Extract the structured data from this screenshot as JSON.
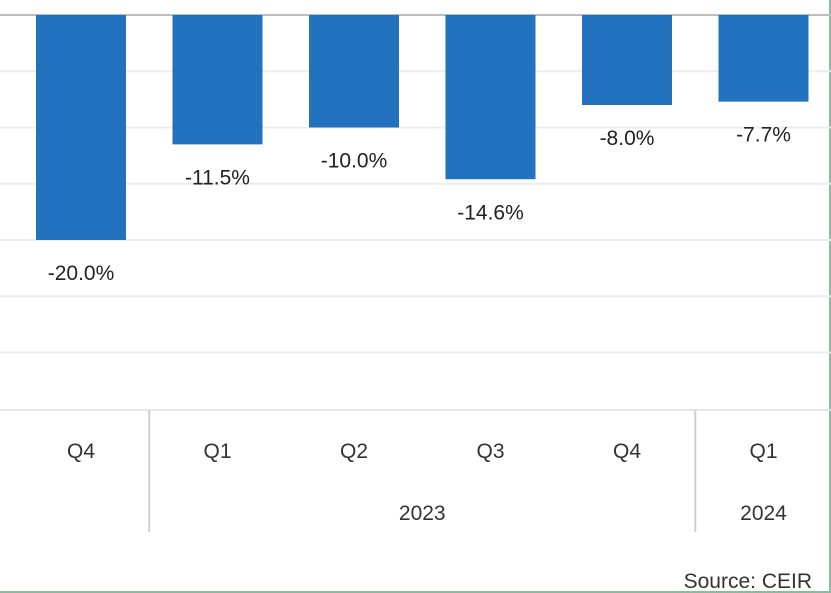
{
  "chart_data": {
    "type": "bar",
    "title": "",
    "xlabel": "",
    "ylabel": "",
    "categories": [
      "Q4",
      "Q1",
      "Q2",
      "Q3",
      "Q4",
      "Q1"
    ],
    "groups": [
      {
        "label": "",
        "categories": [
          "Q4"
        ]
      },
      {
        "label": "2023",
        "categories": [
          "Q1",
          "Q2",
          "Q3",
          "Q4"
        ]
      },
      {
        "label": "2024",
        "categories": [
          "Q1"
        ]
      }
    ],
    "values": [
      -20.0,
      -11.5,
      -10.0,
      -14.6,
      -8.0,
      -7.7
    ],
    "value_labels": [
      "-20.0%",
      "-11.5%",
      "-10.0%",
      "-14.6%",
      "-8.0%",
      "-7.7%"
    ],
    "ylim": [
      -35,
      0
    ],
    "grid": true,
    "bar_color": "#2372bf",
    "source": "Source: CEIR"
  }
}
